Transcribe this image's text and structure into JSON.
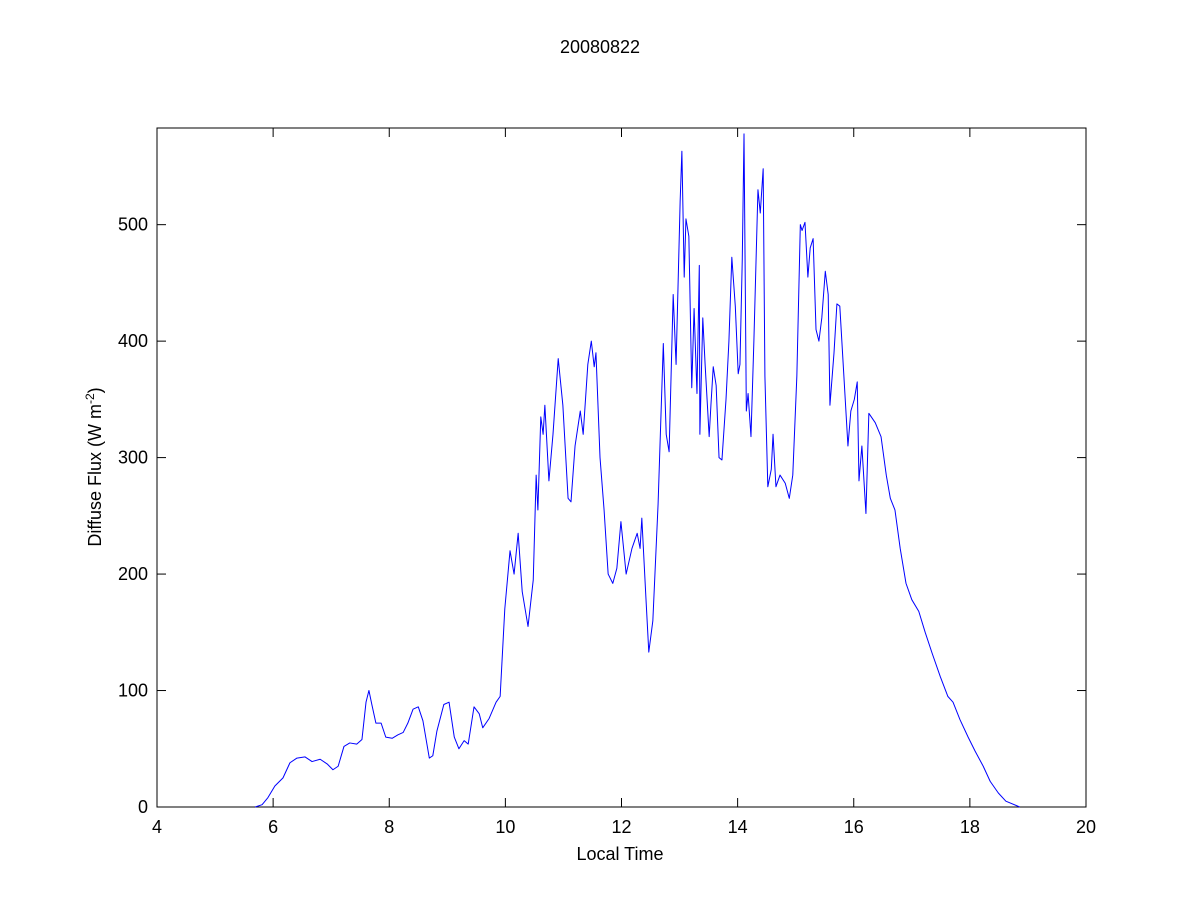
{
  "chart_data": {
    "type": "line",
    "title": "20080822",
    "xlabel": "Local Time",
    "ylabel": [
      "Diffuse Flux (W m",
      "-2",
      ")"
    ],
    "color": "#0000ff",
    "xlim": [
      4,
      20
    ],
    "xticks": [
      4,
      6,
      8,
      10,
      12,
      14,
      16,
      18,
      20
    ],
    "ylim": [
      0,
      583
    ],
    "yticks": [
      0,
      100,
      200,
      300,
      400,
      500
    ],
    "grid": false,
    "box": true,
    "x": [
      5.69,
      5.81,
      5.91,
      6.03,
      6.17,
      6.29,
      6.41,
      6.55,
      6.67,
      6.81,
      6.93,
      7.03,
      7.12,
      7.22,
      7.32,
      7.44,
      7.53,
      7.6,
      7.65,
      7.7,
      7.77,
      7.86,
      7.94,
      8.05,
      8.15,
      8.24,
      8.32,
      8.41,
      8.5,
      8.58,
      8.69,
      8.75,
      8.82,
      8.94,
      9.03,
      9.12,
      9.2,
      9.29,
      9.36,
      9.46,
      9.55,
      9.61,
      9.72,
      9.84,
      9.91,
      9.99,
      10.08,
      10.15,
      10.22,
      10.29,
      10.39,
      10.48,
      10.53,
      10.56,
      10.61,
      10.65,
      10.68,
      10.75,
      10.82,
      10.91,
      10.99,
      11.08,
      11.13,
      11.2,
      11.29,
      11.34,
      11.42,
      11.48,
      11.53,
      11.56,
      11.63,
      11.7,
      11.77,
      11.85,
      11.92,
      11.99,
      12.08,
      12.18,
      12.27,
      12.32,
      12.35,
      12.42,
      12.47,
      12.54,
      12.63,
      12.72,
      12.77,
      12.82,
      12.89,
      12.94,
      13.01,
      13.04,
      13.08,
      13.11,
      13.16,
      13.21,
      13.25,
      13.3,
      13.34,
      13.35,
      13.4,
      13.44,
      13.51,
      13.54,
      13.58,
      13.63,
      13.68,
      13.73,
      13.8,
      13.85,
      13.9,
      13.96,
      14.01,
      14.04,
      14.08,
      14.11,
      14.15,
      14.18,
      14.23,
      14.28,
      14.35,
      14.39,
      14.44,
      14.47,
      14.52,
      14.58,
      14.61,
      14.66,
      14.73,
      14.82,
      14.89,
      14.95,
      15.02,
      15.08,
      15.11,
      15.16,
      15.21,
      15.25,
      15.3,
      15.35,
      15.4,
      15.45,
      15.51,
      15.56,
      15.59,
      15.66,
      15.71,
      15.76,
      15.83,
      15.9,
      15.95,
      16.01,
      16.06,
      16.09,
      16.14,
      16.21,
      16.26,
      16.37,
      16.47,
      16.56,
      16.63,
      16.71,
      16.8,
      16.9,
      17.0,
      17.12,
      17.23,
      17.35,
      17.49,
      17.62,
      17.71,
      17.83,
      17.97,
      18.09,
      18.23,
      18.35,
      18.49,
      18.62,
      18.86
    ],
    "values": [
      0,
      2,
      8,
      18,
      25,
      38,
      42,
      43,
      39,
      41,
      37,
      32,
      35,
      52,
      55,
      54,
      58,
      90,
      100,
      88,
      72,
      72,
      60,
      59,
      62,
      64,
      72,
      84,
      86,
      74,
      42,
      44,
      65,
      88,
      90,
      60,
      50,
      57,
      54,
      86,
      80,
      68,
      76,
      90,
      95,
      170,
      220,
      200,
      235,
      185,
      155,
      195,
      285,
      255,
      335,
      320,
      345,
      280,
      320,
      385,
      345,
      265,
      262,
      310,
      340,
      320,
      380,
      400,
      378,
      390,
      300,
      255,
      200,
      192,
      205,
      245,
      200,
      222,
      235,
      222,
      248,
      180,
      133,
      160,
      260,
      398,
      320,
      305,
      440,
      380,
      520,
      563,
      455,
      505,
      490,
      360,
      428,
      355,
      465,
      320,
      420,
      380,
      318,
      345,
      378,
      362,
      300,
      298,
      350,
      400,
      472,
      430,
      372,
      380,
      470,
      578,
      340,
      355,
      318,
      400,
      530,
      510,
      548,
      370,
      275,
      290,
      320,
      275,
      285,
      278,
      265,
      285,
      370,
      500,
      495,
      502,
      455,
      480,
      488,
      410,
      400,
      420,
      460,
      440,
      345,
      390,
      432,
      430,
      370,
      310,
      340,
      350,
      365,
      280,
      310,
      252,
      338,
      330,
      318,
      285,
      265,
      255,
      222,
      192,
      178,
      168,
      150,
      132,
      112,
      95,
      90,
      75,
      60,
      48,
      35,
      22,
      12,
      5,
      0
    ]
  }
}
